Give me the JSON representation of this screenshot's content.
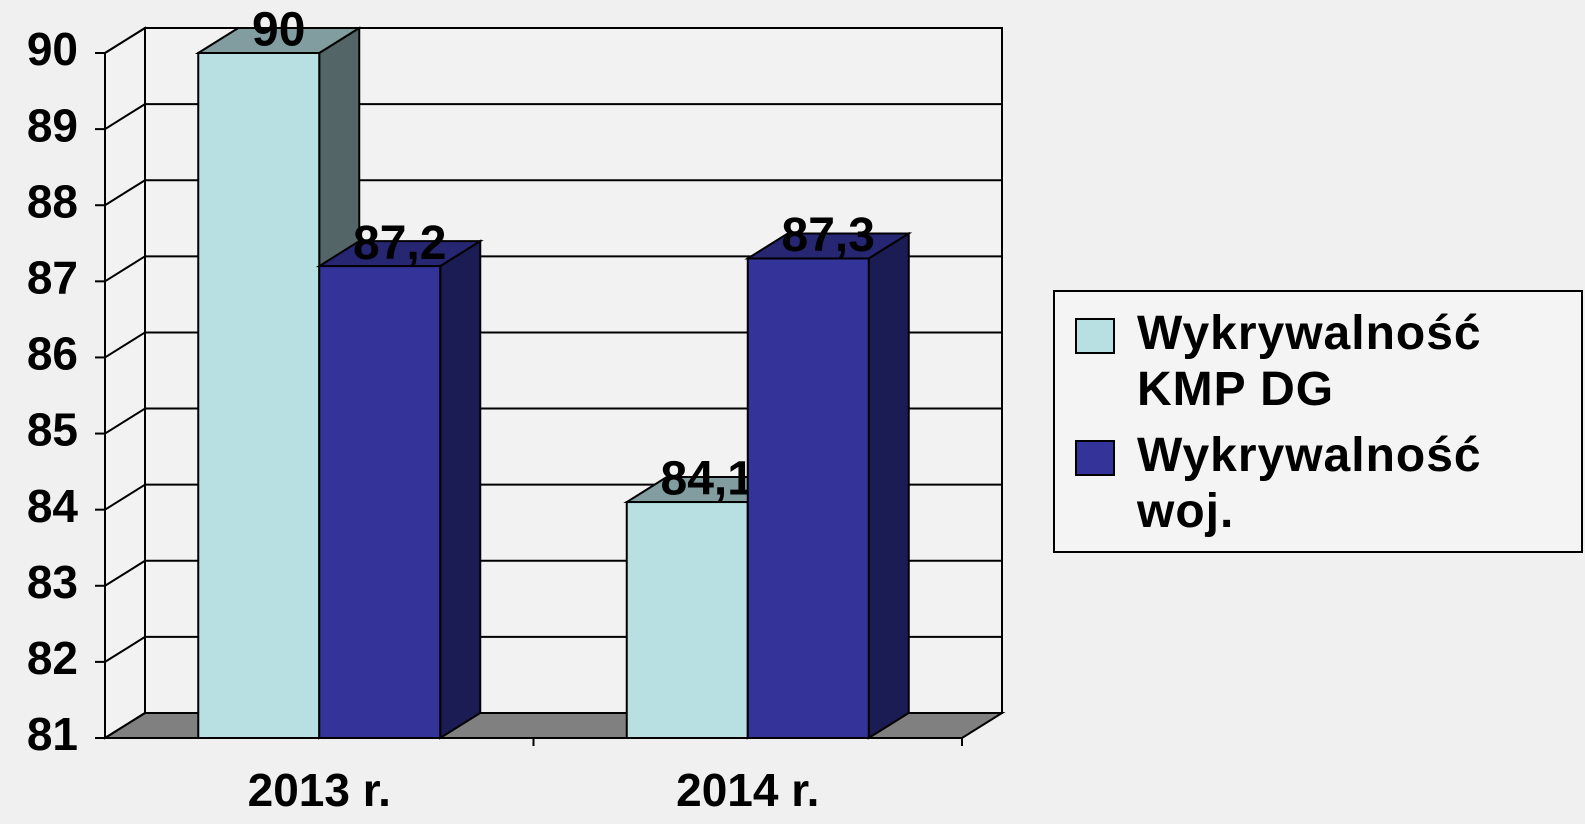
{
  "chart_data": {
    "type": "bar3d",
    "categories": [
      "2013 r.",
      "2014 r."
    ],
    "series": [
      {
        "name": "Wykrywalność KMP DG",
        "color": "#b8e0e3",
        "values": [
          90,
          84.1
        ],
        "value_labels": [
          "90",
          "84,1"
        ]
      },
      {
        "name": "Wykrywalność woj.",
        "color": "#333399",
        "values": [
          87.2,
          87.3
        ],
        "value_labels": [
          "87,2",
          "87,3"
        ]
      }
    ],
    "ylim": [
      81,
      90
    ],
    "yticks": [
      81,
      82,
      83,
      84,
      85,
      86,
      87,
      88,
      89,
      90
    ],
    "grid": true,
    "legend": "right"
  }
}
